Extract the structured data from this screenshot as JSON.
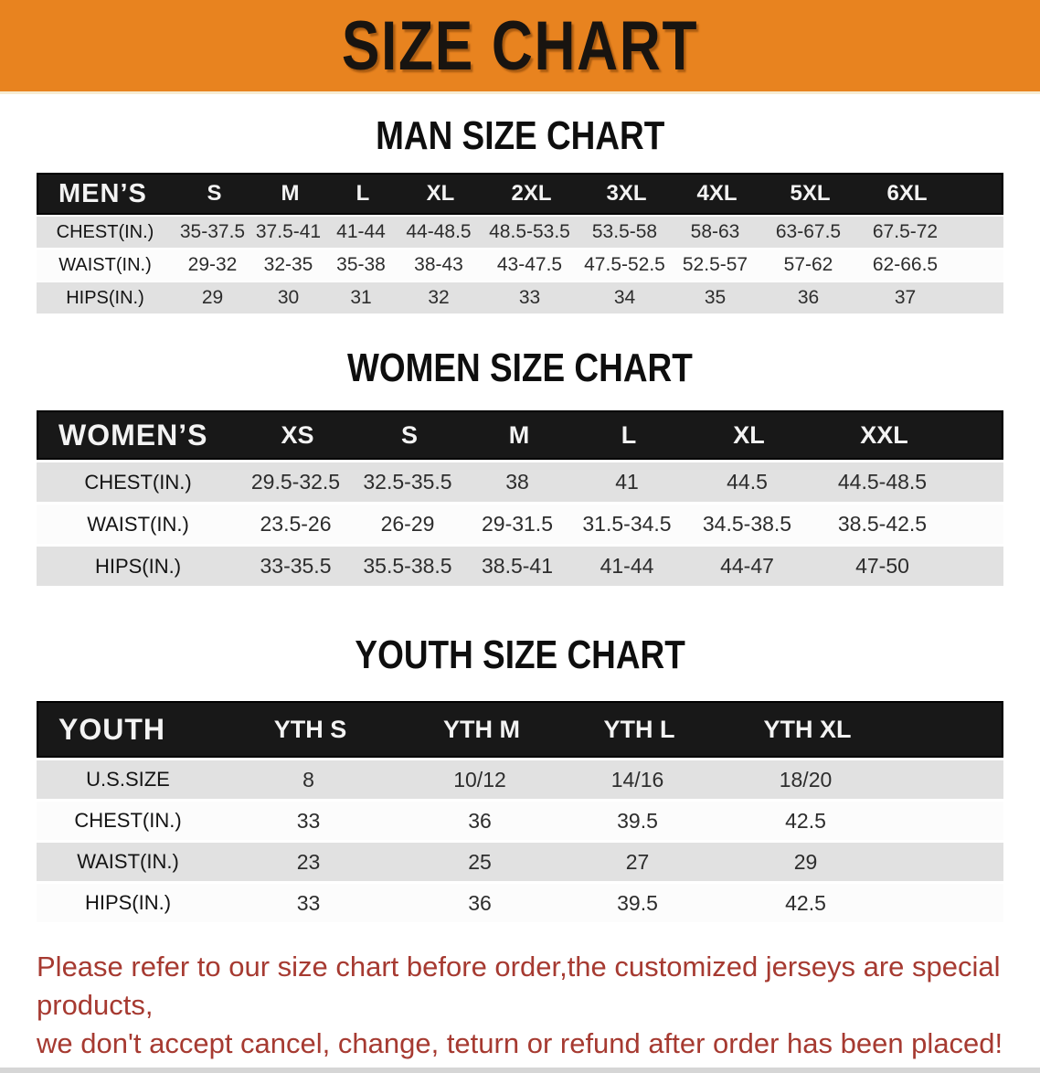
{
  "banner": {
    "title": "SIZE CHART"
  },
  "colors": {
    "banner_background": "#e8831f",
    "header_bar": "#181818",
    "row_stripe": "#e1e1e1",
    "disclaimer_text": "#a63a31"
  },
  "sections": {
    "men": {
      "title": "MAN SIZE CHART",
      "header_label": "MEN’S",
      "columns": [
        "S",
        "M",
        "L",
        "XL",
        "2XL",
        "3XL",
        "4XL",
        "5XL",
        "6XL"
      ],
      "rows": [
        {
          "label": "CHEST(IN.)",
          "values": [
            "35-37.5",
            "37.5-41",
            "41-44",
            "44-48.5",
            "48.5-53.5",
            "53.5-58",
            "58-63",
            "63-67.5",
            "67.5-72"
          ]
        },
        {
          "label": "WAIST(IN.)",
          "values": [
            "29-32",
            "32-35",
            "35-38",
            "38-43",
            "43-47.5",
            "47.5-52.5",
            "52.5-57",
            "57-62",
            "62-66.5"
          ]
        },
        {
          "label": "HIPS(IN.)",
          "values": [
            "29",
            "30",
            "31",
            "32",
            "33",
            "34",
            "35",
            "36",
            "37"
          ]
        }
      ]
    },
    "women": {
      "title": "WOMEN SIZE CHART",
      "header_label": "WOMEN’S",
      "columns": [
        "XS",
        "S",
        "M",
        "L",
        "XL",
        "XXL"
      ],
      "rows": [
        {
          "label": "CHEST(IN.)",
          "values": [
            "29.5-32.5",
            "32.5-35.5",
            "38",
            "41",
            "44.5",
            "44.5-48.5"
          ]
        },
        {
          "label": "WAIST(IN.)",
          "values": [
            "23.5-26",
            "26-29",
            "29-31.5",
            "31.5-34.5",
            "34.5-38.5",
            "38.5-42.5"
          ]
        },
        {
          "label": "HIPS(IN.)",
          "values": [
            "33-35.5",
            "35.5-38.5",
            "38.5-41",
            "41-44",
            "44-47",
            "47-50"
          ]
        }
      ]
    },
    "youth": {
      "title": "YOUTH SIZE CHART",
      "header_label": "YOUTH",
      "columns": [
        "YTH S",
        "YTH M",
        "YTH L",
        "YTH XL"
      ],
      "rows": [
        {
          "label": "U.S.SIZE",
          "values": [
            "8",
            "10/12",
            "14/16",
            "18/20"
          ]
        },
        {
          "label": "CHEST(IN.)",
          "values": [
            "33",
            "36",
            "39.5",
            "42.5"
          ]
        },
        {
          "label": "WAIST(IN.)",
          "values": [
            "23",
            "25",
            "27",
            "29"
          ]
        },
        {
          "label": "HIPS(IN.)",
          "values": [
            "33",
            "36",
            "39.5",
            "42.5"
          ]
        }
      ]
    }
  },
  "disclaimer": {
    "line1": "Please refer to our size chart before order,the customized jerseys are special products,",
    "line2": "we don't accept cancel, change, teturn or refund after order has been placed!"
  }
}
